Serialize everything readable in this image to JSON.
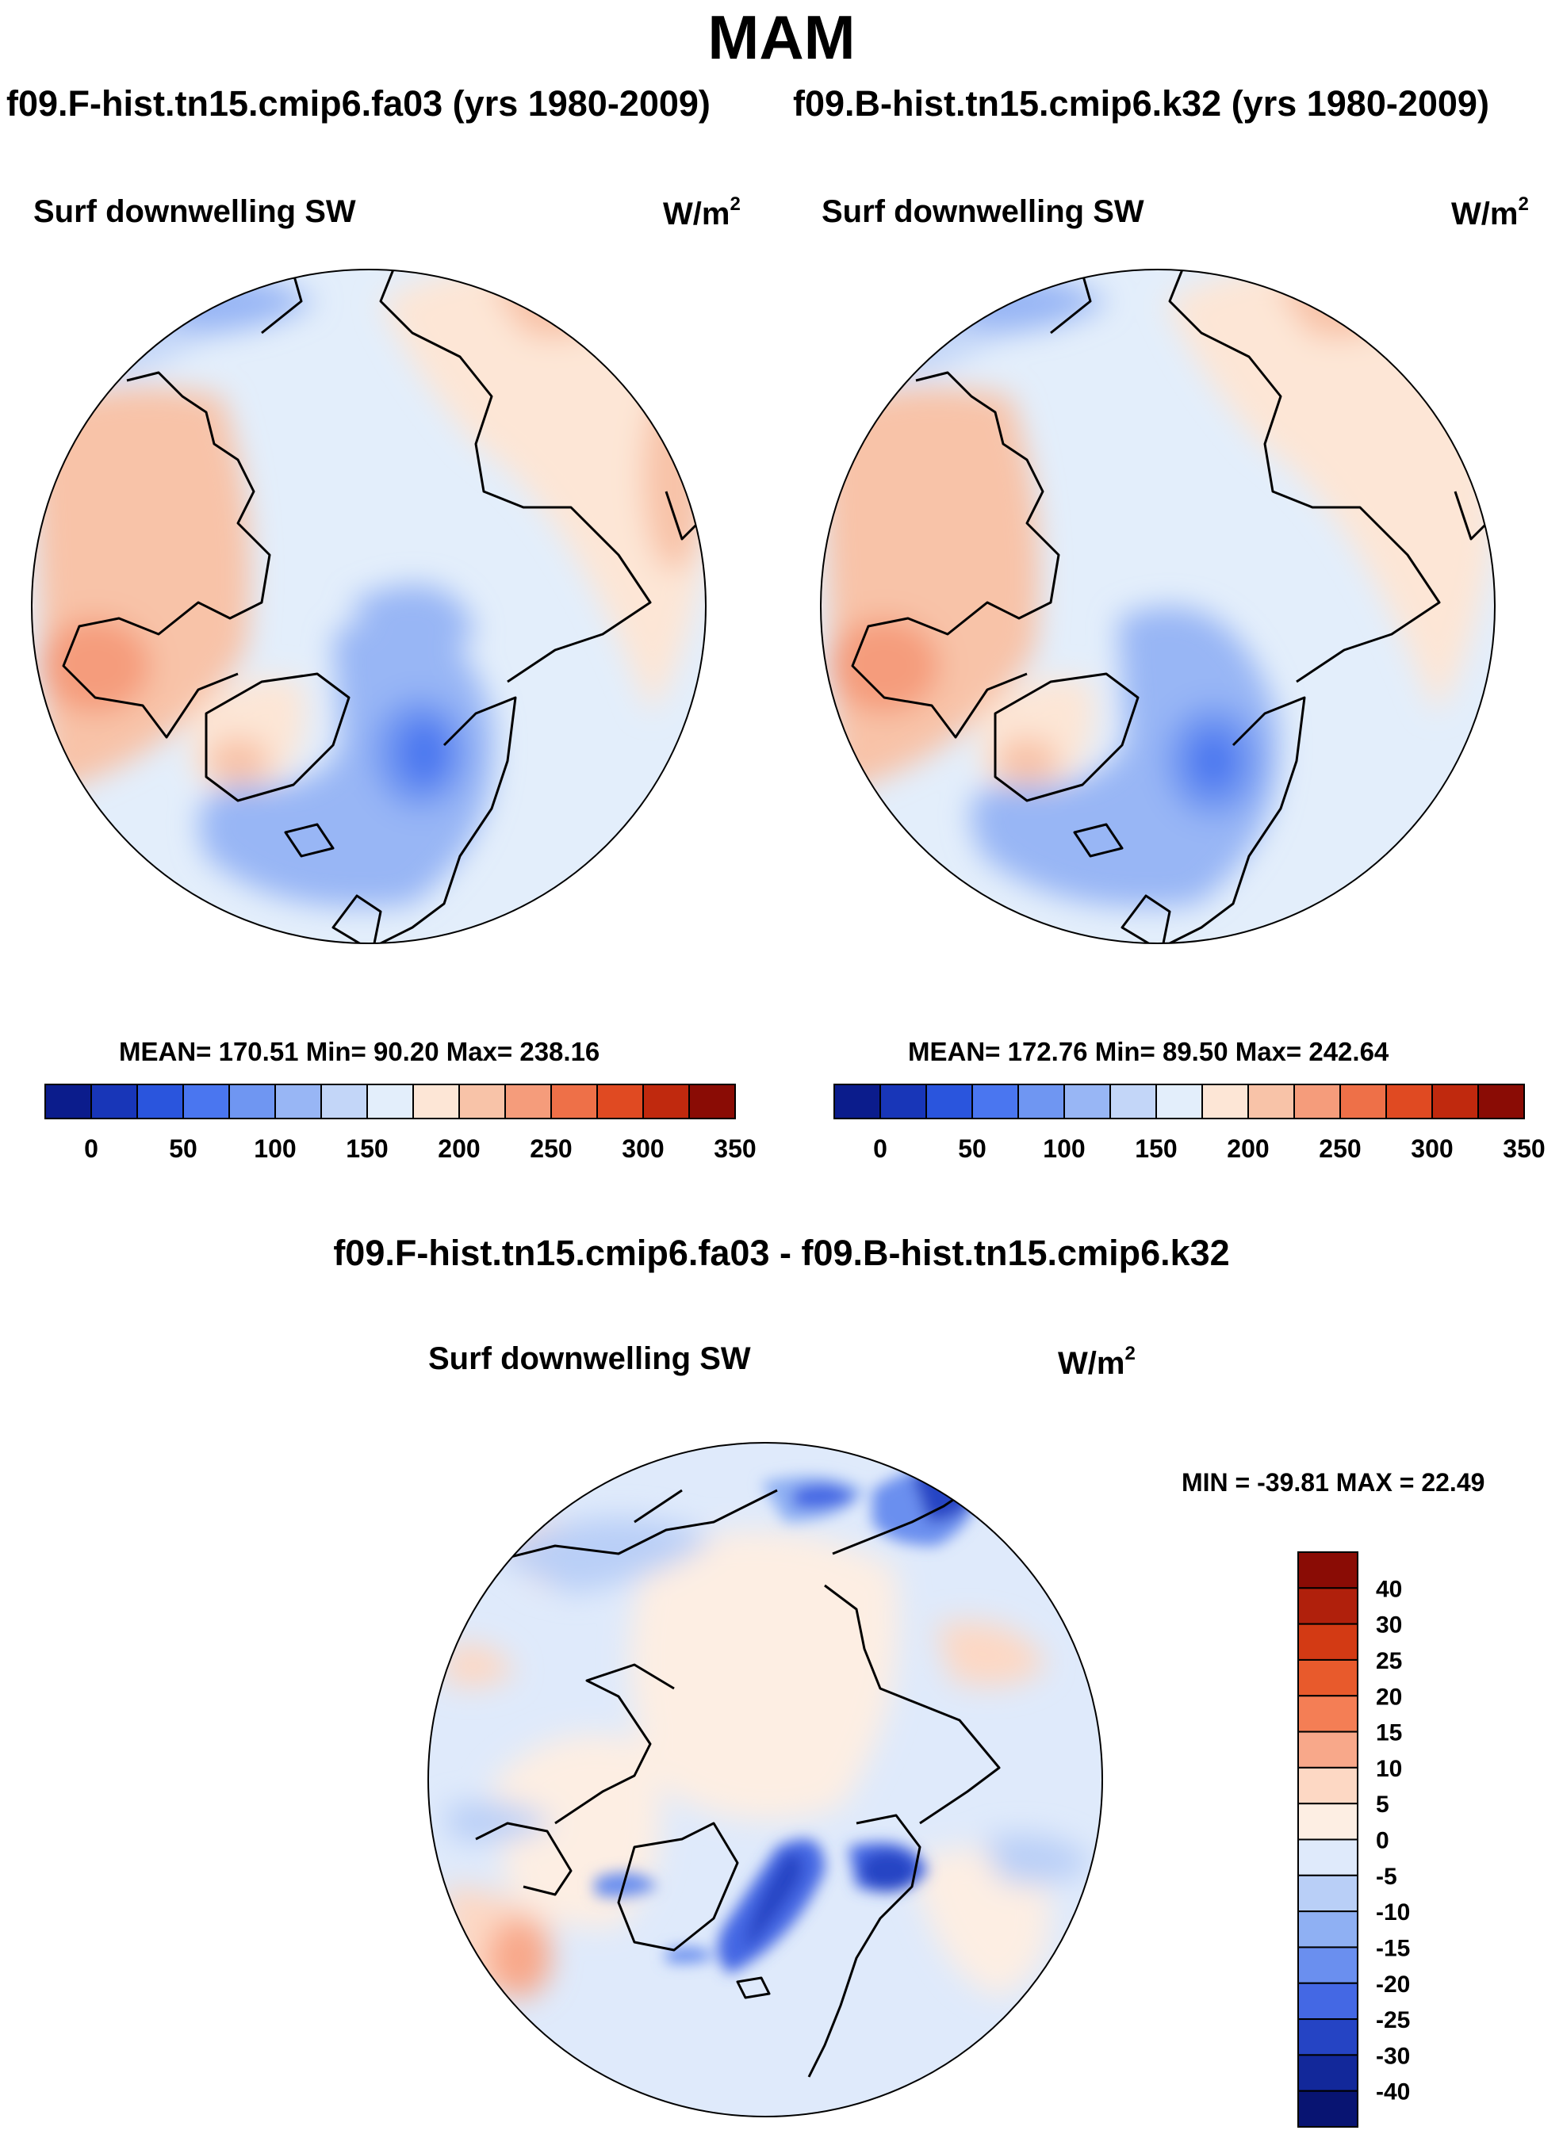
{
  "figure": {
    "season": "MAM",
    "case_a": "f09.F-hist.tn15.cmip6.fa03 (yrs 1980-2009)",
    "case_b": "f09.B-hist.tn15.cmip6.k32 (yrs 1980-2009)",
    "diff_title": "f09.F-hist.tn15.cmip6.fa03 - f09.B-hist.tn15.cmip6.k32"
  },
  "panels": {
    "left": {
      "variable": "Surf downwelling SW",
      "units_base": "W/m",
      "units_exp": "2",
      "stats": "MEAN= 170.51  Min=  90.20  Max= 238.16"
    },
    "right": {
      "variable": "Surf downwelling SW",
      "units_base": "W/m",
      "units_exp": "2",
      "stats": "MEAN= 172.76  Min=  89.50  Max= 242.64"
    },
    "diff": {
      "variable": "Surf downwelling SW",
      "units_base": "W/m",
      "units_exp": "2",
      "stats": "MIN = -39.81 MAX =  22.49"
    }
  },
  "chart_data": [
    {
      "type": "heatmap",
      "projection": "north polar stereographic",
      "title": "Surf downwelling SW",
      "subtitle": "f09.F-hist.tn15.cmip6.fa03 (yrs 1980-2009)",
      "units": "W/m2",
      "mean": 170.51,
      "min": 90.2,
      "max": 238.16,
      "colorbar_labels": [
        "0",
        "50",
        "100",
        "150",
        "200",
        "250",
        "300",
        "350"
      ],
      "colorbar_colors": [
        "#0b1c8c",
        "#1836b8",
        "#2a55dd",
        "#4a76f0",
        "#6f96f2",
        "#98b6f5",
        "#c3d6f8",
        "#e3eefb",
        "#fde6d6",
        "#f8c3a8",
        "#f59c7b",
        "#ee7048",
        "#e04a22",
        "#c0290e",
        "#8a0c05"
      ]
    },
    {
      "type": "heatmap",
      "projection": "north polar stereographic",
      "title": "Surf downwelling SW",
      "subtitle": "f09.B-hist.tn15.cmip6.k32 (yrs 1980-2009)",
      "units": "W/m2",
      "mean": 172.76,
      "min": 89.5,
      "max": 242.64,
      "colorbar_labels": [
        "0",
        "50",
        "100",
        "150",
        "200",
        "250",
        "300",
        "350"
      ],
      "colorbar_colors": [
        "#0b1c8c",
        "#1836b8",
        "#2a55dd",
        "#4a76f0",
        "#6f96f2",
        "#98b6f5",
        "#c3d6f8",
        "#e3eefb",
        "#fde6d6",
        "#f8c3a8",
        "#f59c7b",
        "#ee7048",
        "#e04a22",
        "#c0290e",
        "#8a0c05"
      ]
    },
    {
      "type": "heatmap",
      "projection": "north polar stereographic",
      "title": "Surf downwelling SW",
      "subtitle": "f09.F-hist.tn15.cmip6.fa03 - f09.B-hist.tn15.cmip6.k32",
      "units": "W/m2",
      "min": -39.81,
      "max": 22.49,
      "colorbar_labels": [
        "40",
        "30",
        "25",
        "20",
        "15",
        "10",
        "5",
        "0",
        "-5",
        "-10",
        "-15",
        "-20",
        "-25",
        "-30",
        "-40"
      ],
      "colorbar_colors": [
        "#8a0c05",
        "#b0200c",
        "#d33a14",
        "#e85a2c",
        "#f47e55",
        "#f8a88a",
        "#fdd8c4",
        "#fdeee3",
        "#dfeafb",
        "#b9cff7",
        "#8fb0f3",
        "#6a8fef",
        "#4468e4",
        "#2544c4",
        "#12289a",
        "#081472"
      ]
    }
  ],
  "palette": {
    "ocean_light": "#dce9fa",
    "land_warm": "#f8d3bd"
  }
}
